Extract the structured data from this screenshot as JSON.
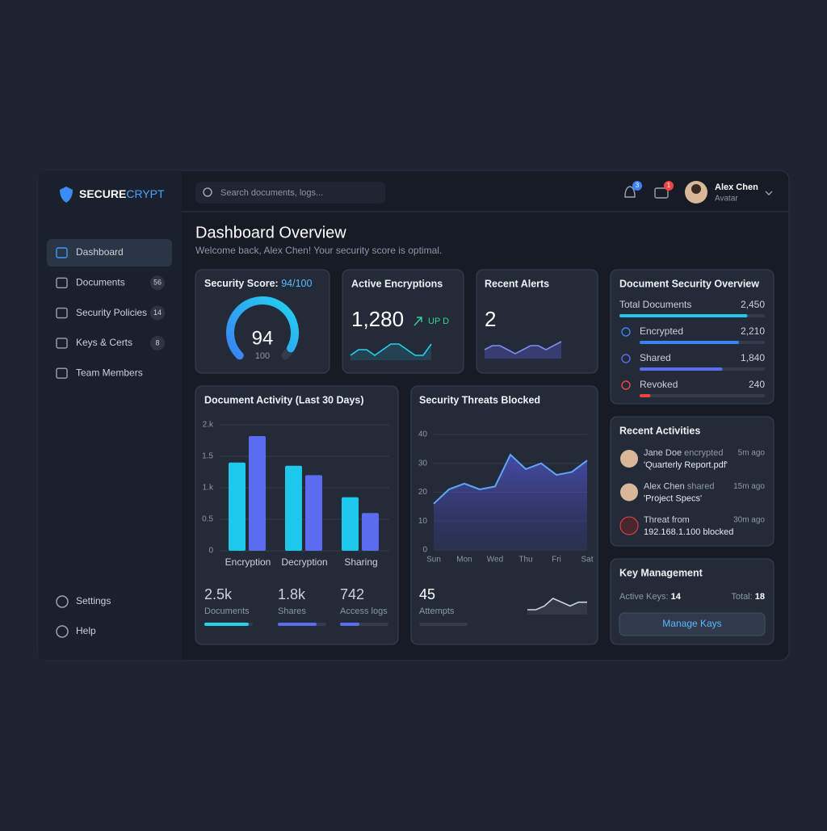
{
  "brand": {
    "first": "SECURE",
    "second": "CRYPT"
  },
  "nav": [
    {
      "label": "Dashboard"
    },
    {
      "label": "Documents",
      "badge": 56
    },
    {
      "label": "Security Policies",
      "badge": 14
    },
    {
      "label": "Keys & Certs",
      "badge": 8
    },
    {
      "label": "Team Members"
    }
  ],
  "nav_footer": [
    "Settings",
    "Help"
  ],
  "search_placeholder": "Search documents, logs...",
  "notifications": {
    "alerts": 3,
    "messages": 1
  },
  "user": {
    "name": "Alex Chen",
    "role": "Avatar"
  },
  "header": {
    "title": "Dashboard Overview",
    "subtitle": "Welcome back, Alex Chen! Your security score is optimal."
  },
  "cards": {
    "security_score": {
      "title": "Security Score:",
      "score_label": "94/100",
      "value": 94,
      "max": 100
    },
    "active_encryptions": {
      "title": "Active Encryptions",
      "value": "1,280",
      "trend_label": "UP D",
      "trend": [
        4,
        5,
        5,
        4,
        5,
        6,
        6,
        5,
        4,
        4,
        6
      ]
    },
    "recent_alerts": {
      "title": "Recent Alerts",
      "value": 2,
      "trend": [
        5,
        6,
        6,
        5,
        4,
        5,
        6,
        6,
        5,
        6,
        7
      ]
    },
    "document_security": {
      "title": "Document Security Overview",
      "rows": [
        {
          "label": "Total Documents",
          "value": 2450,
          "value_label": "2,450",
          "color": "#22c5ee"
        },
        {
          "label": "Encrypted",
          "value": 2210,
          "value_label": "2,210",
          "color": "#3b82f6"
        },
        {
          "label": "Shared",
          "value": 1840,
          "value_label": "1,840",
          "color": "#5b6cf0"
        },
        {
          "label": "Revoked",
          "value": 240,
          "value_label": "240",
          "color": "#ef4444"
        }
      ]
    },
    "activity_stats": [
      {
        "value": "2.5k",
        "label": "Documents"
      },
      {
        "value": "1.8k",
        "label": "Shares"
      },
      {
        "value": "742",
        "label": "Access logs"
      }
    ],
    "threat_stats": {
      "value": 45,
      "label": "Attempts",
      "trend": [
        3,
        3,
        4,
        6,
        5,
        4,
        5,
        5
      ]
    },
    "recent_activities": {
      "title": "Recent Activities",
      "items": [
        {
          "actor": "Jane Doe",
          "action": " encrypted",
          "target": "'Quarterly Report.pdf'",
          "time": "5m ago"
        },
        {
          "actor": "Alex Chen",
          "action": " shared",
          "target": "'Project Specs'",
          "time": "15m ago"
        },
        {
          "actor": "Threat from",
          "action": "",
          "target": "192.168.1.100 blocked",
          "time": "30m ago"
        }
      ]
    },
    "key_management": {
      "title": "Key Management",
      "active_label": "Active Keys:",
      "active": 14,
      "total_label": "Total:",
      "total": 18,
      "button": "Manage Kays"
    }
  },
  "chart_data": [
    {
      "type": "bar",
      "title": "Document Activity (Last 30 Days)",
      "categories": [
        "Encryption",
        "Decryption",
        "Sharing"
      ],
      "series": [
        {
          "color": "#1ec8ea",
          "values": [
            1.4,
            1.35,
            0.85
          ]
        },
        {
          "color": "#5b6cf0",
          "values": [
            1.82,
            1.2,
            0.6
          ]
        }
      ],
      "ylim": [
        0,
        2
      ],
      "yticks": [
        0,
        0.5,
        {
          "value": 1,
          "label": "1.k"
        },
        1.5,
        {
          "value": 2,
          "label": "2.k"
        }
      ],
      "grid": true
    },
    {
      "type": "area",
      "title": "Security Threats Blocked",
      "categories": [
        "Sun",
        null,
        "Mon",
        null,
        "Wed",
        null,
        "Thu",
        null,
        "Fri",
        null,
        "Sat"
      ],
      "series": [
        {
          "color": "#60a5fa",
          "values": [
            16,
            21,
            23,
            21,
            22,
            33,
            28,
            30,
            26,
            27,
            31
          ]
        }
      ],
      "ylim": [
        0,
        40
      ],
      "yticks": [
        0,
        10,
        20,
        30,
        40
      ],
      "grid": true
    }
  ]
}
